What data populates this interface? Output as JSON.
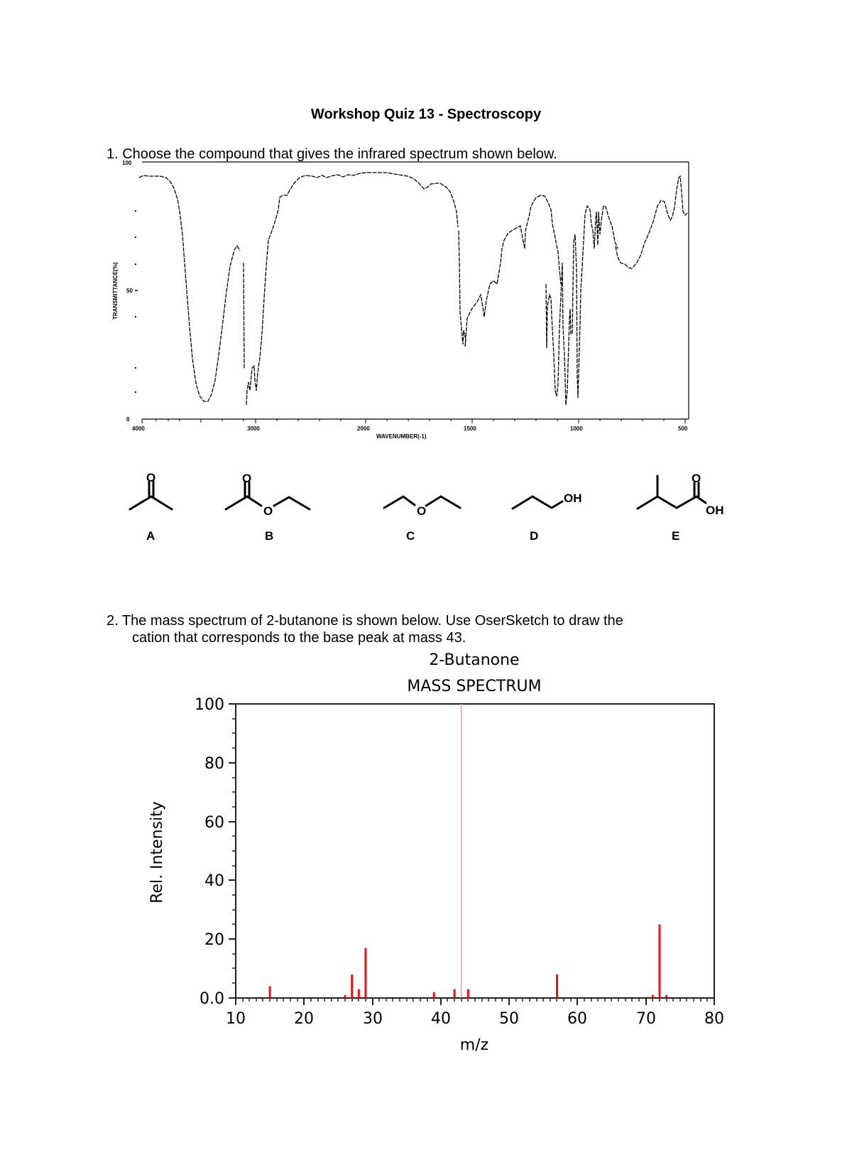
{
  "document": {
    "title": "Workshop Quiz 13 - Spectroscopy"
  },
  "question1": {
    "text": "1. Choose the compound that gives the infrared spectrum shown below.",
    "ir_spectrum": {
      "y_axis_label": "TRANSMITTANCE(%)",
      "y_ticks": [
        "100",
        "50",
        "0"
      ],
      "x_axis_label": "WAVENUMBER(-1)",
      "x_ticks": [
        "4000",
        "3000",
        "2000",
        "1500",
        "1000",
        "500"
      ]
    },
    "choices": [
      {
        "label": "A",
        "name": "acetone",
        "atoms": [
          "O"
        ]
      },
      {
        "label": "B",
        "name": "ethyl acetate",
        "atoms": [
          "O",
          "O"
        ]
      },
      {
        "label": "C",
        "name": "diethyl ether",
        "atoms": [
          "O"
        ]
      },
      {
        "label": "D",
        "name": "1-propanol",
        "atoms": [
          "OH"
        ]
      },
      {
        "label": "E",
        "name": "3-methylbutanoic acid",
        "atoms": [
          "O",
          "OH"
        ]
      }
    ]
  },
  "question2": {
    "line1": "2. The mass spectrum of 2-butanone is shown below.  Use OserSketch to draw the",
    "line2": "cation that corresponds to the base peak at mass 43."
  },
  "chart_data": [
    {
      "type": "line",
      "title": "",
      "xlabel": "WAVENUMBER(-1)",
      "ylabel": "TRANSMITTANCE(%)",
      "xlim": [
        4000,
        450
      ],
      "ylim": [
        0,
        100
      ],
      "x_ticks": [
        4000,
        3000,
        2000,
        1500,
        1000,
        500
      ],
      "y_ticks": [
        0,
        50,
        100
      ],
      "grid": false,
      "series": [
        {
          "name": "IR spectrum",
          "x": [
            3950,
            3800,
            3700,
            3600,
            3500,
            3400,
            3350,
            3300,
            3200,
            3100,
            3050,
            3000,
            2970,
            2930,
            2880,
            2800,
            2700,
            2500,
            2300,
            2100,
            2000,
            1900,
            1800,
            1700,
            1650,
            1600,
            1500,
            1460,
            1420,
            1380,
            1350,
            1300,
            1250,
            1200,
            1150,
            1100,
            1080,
            1060,
            1040,
            1020,
            1000,
            980,
            950,
            920,
            880,
            800,
            720,
            660,
            600,
            550,
            500,
            480,
            460
          ],
          "y": [
            94,
            93,
            88,
            50,
            15,
            7,
            6,
            10,
            35,
            56,
            40,
            5,
            12,
            3,
            30,
            60,
            86,
            95,
            94,
            95,
            94,
            88,
            90,
            80,
            55,
            38,
            33,
            45,
            65,
            77,
            84,
            70,
            44,
            22,
            12,
            6,
            40,
            28,
            12,
            40,
            64,
            88,
            72,
            88,
            60,
            60,
            58,
            68,
            80,
            92,
            82,
            95,
            80
          ]
        }
      ]
    },
    {
      "type": "bar",
      "title": "2-Butanone",
      "subtitle": "MASS SPECTRUM",
      "xlabel": "m/z",
      "ylabel": "Rel. Intensity",
      "xlim": [
        10,
        80
      ],
      "ylim": [
        0,
        100
      ],
      "x_ticks": [
        10,
        20,
        30,
        40,
        50,
        60,
        70,
        80
      ],
      "y_ticks": [
        "0.0",
        "20",
        "40",
        "60",
        "80",
        "100"
      ],
      "grid": false,
      "color": "#ee1111",
      "x": [
        15,
        26,
        27,
        28,
        29,
        39,
        42,
        43,
        44,
        57,
        71,
        72,
        73
      ],
      "values": [
        4,
        1,
        8,
        3,
        17,
        2,
        3,
        100,
        3,
        8,
        1,
        25,
        1
      ]
    }
  ]
}
